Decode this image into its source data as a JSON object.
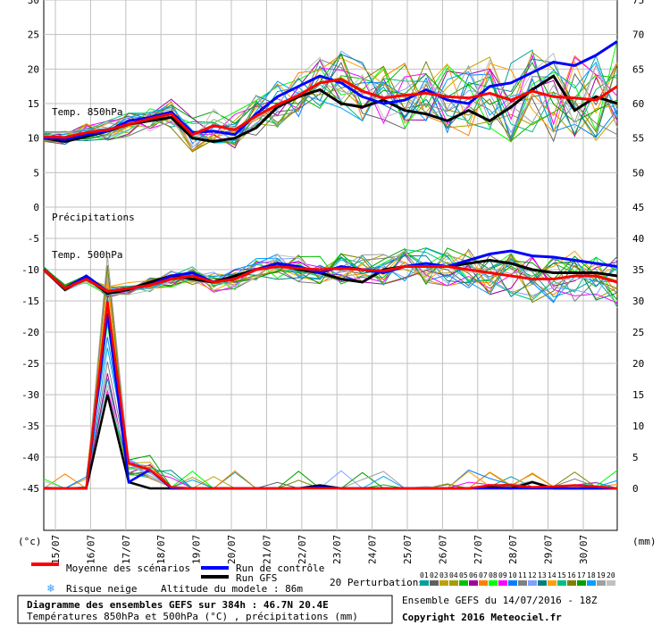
{
  "chart_data": [
    {
      "type": "line",
      "panel": "top",
      "label": "Temp. 850hPa",
      "y_left_ticks": [
        0,
        5,
        10,
        15,
        20,
        25,
        30
      ],
      "y_right_ticks": [
        50,
        55,
        60,
        65,
        70,
        75
      ],
      "ylim": [
        0,
        30
      ],
      "x_date_labels": [
        "15/07",
        "16/07",
        "17/07",
        "18/07",
        "19/07",
        "20/07",
        "21/07",
        "22/07",
        "23/07",
        "24/07",
        "25/07",
        "26/07",
        "27/07",
        "28/07",
        "29/07",
        "30/07"
      ],
      "series": [
        {
          "name": "Moyenne des scénarios",
          "color": "#ff0000",
          "values": [
            10.2,
            10.1,
            10.8,
            11.2,
            12.0,
            12.8,
            13.5,
            10.5,
            11.8,
            11.2,
            13.2,
            14.8,
            16.2,
            18.0,
            18.5,
            16.8,
            15.8,
            16.2,
            16.5,
            16.0,
            15.8,
            16.5,
            15.5,
            16.8,
            16.0,
            15.8,
            15.5,
            17.5
          ]
        },
        {
          "name": "Run de contrôle",
          "color": "#0000ff",
          "values": [
            10.0,
            9.8,
            10.5,
            11.0,
            12.5,
            13.0,
            13.8,
            10.8,
            11.0,
            10.5,
            13.5,
            16.0,
            17.5,
            19.0,
            18.0,
            16.0,
            15.0,
            15.5,
            17.0,
            15.5,
            15.0,
            17.5,
            18.0,
            19.5,
            21.0,
            20.5,
            22.0,
            24.0
          ]
        },
        {
          "name": "Run GFS",
          "color": "#000000",
          "values": [
            10.0,
            9.5,
            10.2,
            11.0,
            12.0,
            12.5,
            13.0,
            10.0,
            9.5,
            10.0,
            11.5,
            14.5,
            16.0,
            17.0,
            15.0,
            14.5,
            15.5,
            14.0,
            13.5,
            12.5,
            14.0,
            12.5,
            14.5,
            17.0,
            19.0,
            14.0,
            16.0,
            15.0
          ]
        }
      ]
    },
    {
      "type": "line",
      "panel": "bottom",
      "labels": [
        "Précipitations",
        "Temp. 500hPa"
      ],
      "y_left_ticks": [
        -45,
        -40,
        -35,
        -30,
        -25,
        -20,
        -15,
        -10,
        -5
      ],
      "y_right_ticks": [
        0,
        5,
        10,
        15,
        20,
        25,
        30,
        35,
        40,
        45
      ],
      "ylim": [
        -45,
        0
      ],
      "precip_ylim": [
        0,
        45
      ],
      "temp500": [
        {
          "name": "Moyenne des scénarios",
          "color": "#ff0000",
          "values": [
            -10.0,
            -13.0,
            -11.5,
            -13.5,
            -13.0,
            -12.5,
            -11.5,
            -11.0,
            -12.0,
            -11.5,
            -10.0,
            -9.5,
            -9.8,
            -10.0,
            -9.8,
            -10.0,
            -10.2,
            -9.5,
            -9.5,
            -9.5,
            -10.0,
            -10.5,
            -11.0,
            -11.5,
            -11.5,
            -11.0,
            -11.0,
            -12.0
          ]
        },
        {
          "name": "Run de contrôle",
          "color": "#0000ff",
          "values": [
            -10.0,
            -13.0,
            -11.0,
            -13.5,
            -13.0,
            -12.5,
            -11.0,
            -10.5,
            -12.0,
            -11.5,
            -10.0,
            -9.0,
            -9.5,
            -10.5,
            -9.5,
            -10.0,
            -10.5,
            -9.5,
            -9.0,
            -9.5,
            -8.5,
            -7.5,
            -7.0,
            -7.8,
            -8.0,
            -8.5,
            -9.0,
            -9.5
          ]
        },
        {
          "name": "Run GFS",
          "color": "#000000",
          "values": [
            -10.0,
            -13.2,
            -11.2,
            -13.8,
            -13.2,
            -12.0,
            -11.0,
            -11.5,
            -12.0,
            -11.0,
            -10.0,
            -9.0,
            -10.0,
            -10.5,
            -11.5,
            -12.0,
            -10.0,
            -9.5,
            -9.5,
            -9.5,
            -9.0,
            -8.5,
            -9.0,
            -10.0,
            -10.5,
            -10.5,
            -10.5,
            -11.0
          ]
        }
      ],
      "precip": [
        {
          "name": "Moyenne des scénarios",
          "color": "#ff0000",
          "values": [
            0,
            0,
            0,
            30,
            4,
            3,
            0.2,
            0,
            0,
            0,
            0,
            0,
            0,
            0,
            0,
            0,
            0,
            0,
            0,
            0,
            0,
            0.5,
            0.5,
            0.2,
            0.3,
            0.5,
            0.3,
            0
          ]
        },
        {
          "name": "Run de contrôle",
          "color": "#0000ff",
          "values": [
            0,
            0,
            0,
            28,
            1,
            3,
            0,
            0,
            0,
            0,
            0,
            0,
            0,
            0.2,
            0,
            0,
            0,
            0,
            0,
            0,
            0,
            0,
            0,
            0,
            0,
            0,
            0,
            0
          ]
        },
        {
          "name": "Run GFS",
          "color": "#000000",
          "values": [
            0,
            0,
            0,
            15,
            1,
            0,
            0,
            0,
            0,
            0,
            0,
            0,
            0,
            0.5,
            0,
            0,
            0,
            0,
            0,
            0,
            0,
            0.2,
            0,
            1.0,
            0,
            0,
            0,
            0
          ]
        }
      ]
    }
  ],
  "axis_units": {
    "left": "(°c)",
    "right": "(mm)"
  },
  "legend": {
    "mean": "Moyenne des scénarios",
    "control": "Run de contrôle",
    "gfs": "Run GFS",
    "perturbations": "20 Perturbations",
    "snow": "Risque neige",
    "altitude": "Altitude du modele : 86m",
    "pert_numbers": [
      "01",
      "02",
      "03",
      "04",
      "05",
      "06",
      "07",
      "08",
      "09",
      "10",
      "11",
      "12",
      "13",
      "14",
      "15",
      "16",
      "17",
      "18",
      "19",
      "20"
    ],
    "pert_colors": [
      "#00a0a0",
      "#606060",
      "#c0a000",
      "#a0a000",
      "#00c000",
      "#a000a0",
      "#ff8000",
      "#00ff00",
      "#ff00ff",
      "#0080ff",
      "#808080",
      "#80a0ff",
      "#008080",
      "#ffa000",
      "#00c080",
      "#808000",
      "#00a000",
      "#00a0ff",
      "#a0a0a0",
      "#c0c0c0"
    ]
  },
  "title_box": {
    "line1": "Diagramme des ensembles GEFS sur 384h : 46.7N 20.4E",
    "line2": "Températures 850hPa et 500hPa (°C) , précipitations (mm)"
  },
  "ensemble_info": "Ensemble GEFS du 14/07/2016 - 18Z",
  "copyright": "Copyright 2016 Meteociel.fr"
}
